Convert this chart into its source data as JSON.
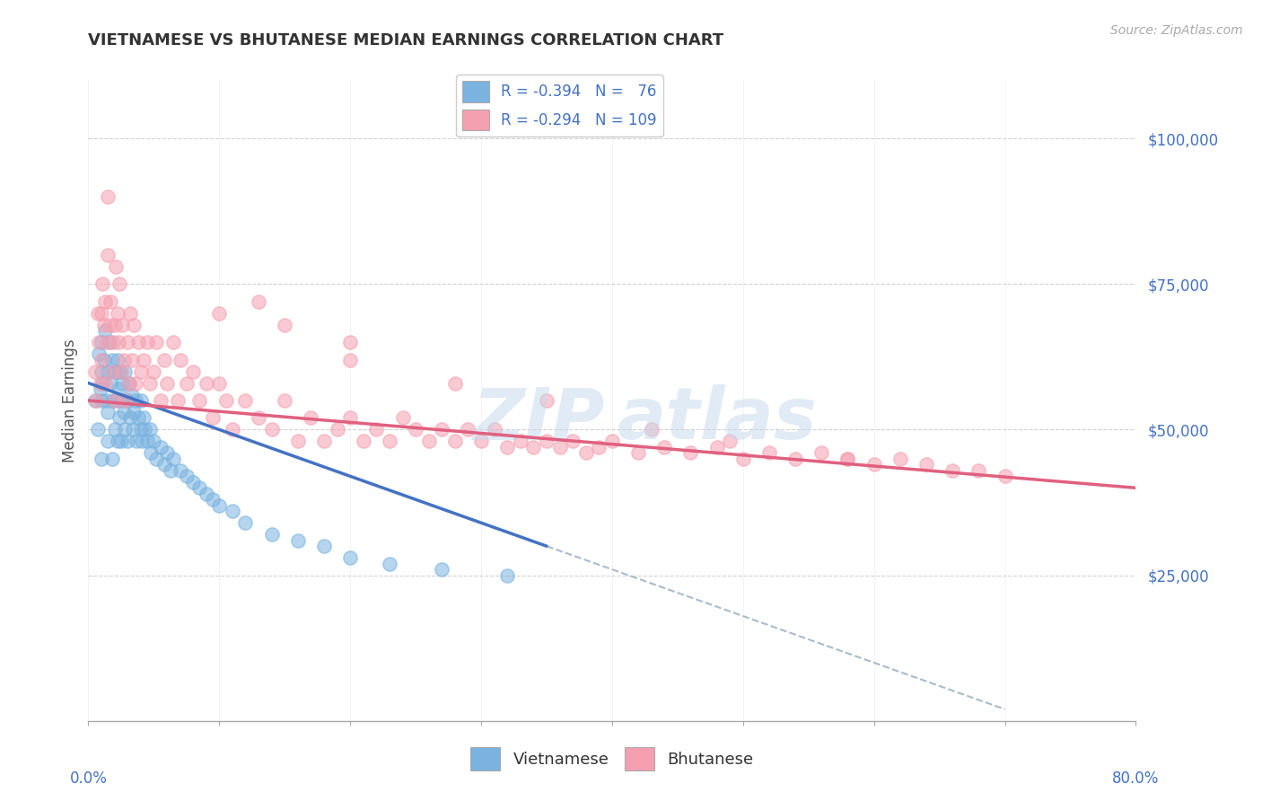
{
  "title": "VIETNAMESE VS BHUTANESE MEDIAN EARNINGS CORRELATION CHART",
  "source": "Source: ZipAtlas.com",
  "ylabel": "Median Earnings",
  "y_ticks": [
    25000,
    50000,
    75000,
    100000
  ],
  "y_tick_labels": [
    "$25,000",
    "$50,000",
    "$75,000",
    "$100,000"
  ],
  "xlim": [
    0.0,
    0.8
  ],
  "ylim": [
    0,
    110000
  ],
  "legend_r1": "R = -0.394   N =   76",
  "legend_r2": "R = -0.294   N = 109",
  "viet_color": "#7ab3e0",
  "bhut_color": "#f5a0b0",
  "viet_line_color": "#4472c4",
  "bhut_line_color": "#e06080",
  "dash_line_color": "#aabbcc",
  "background_color": "#ffffff",
  "viet_scatter_x": [
    0.005,
    0.007,
    0.008,
    0.009,
    0.01,
    0.01,
    0.01,
    0.01,
    0.011,
    0.012,
    0.013,
    0.014,
    0.015,
    0.015,
    0.015,
    0.016,
    0.017,
    0.018,
    0.018,
    0.019,
    0.02,
    0.02,
    0.021,
    0.022,
    0.022,
    0.023,
    0.024,
    0.024,
    0.025,
    0.025,
    0.026,
    0.027,
    0.028,
    0.028,
    0.029,
    0.03,
    0.03,
    0.031,
    0.032,
    0.033,
    0.034,
    0.035,
    0.036,
    0.037,
    0.038,
    0.04,
    0.04,
    0.041,
    0.042,
    0.043,
    0.045,
    0.047,
    0.048,
    0.05,
    0.052,
    0.055,
    0.058,
    0.06,
    0.063,
    0.065,
    0.07,
    0.075,
    0.08,
    0.085,
    0.09,
    0.095,
    0.1,
    0.11,
    0.12,
    0.14,
    0.16,
    0.18,
    0.2,
    0.23,
    0.27,
    0.32
  ],
  "viet_scatter_y": [
    55000,
    50000,
    63000,
    57000,
    65000,
    60000,
    55000,
    45000,
    58000,
    62000,
    67000,
    55000,
    60000,
    53000,
    48000,
    65000,
    58000,
    62000,
    45000,
    55000,
    60000,
    50000,
    55000,
    62000,
    48000,
    57000,
    52000,
    60000,
    55000,
    48000,
    58000,
    53000,
    60000,
    50000,
    55000,
    55000,
    48000,
    58000,
    52000,
    56000,
    50000,
    53000,
    55000,
    48000,
    52000,
    50000,
    55000,
    48000,
    52000,
    50000,
    48000,
    50000,
    46000,
    48000,
    45000,
    47000,
    44000,
    46000,
    43000,
    45000,
    43000,
    42000,
    41000,
    40000,
    39000,
    38000,
    37000,
    36000,
    34000,
    32000,
    31000,
    30000,
    28000,
    27000,
    26000,
    25000
  ],
  "bhut_scatter_x": [
    0.005,
    0.006,
    0.007,
    0.008,
    0.009,
    0.01,
    0.01,
    0.011,
    0.012,
    0.013,
    0.013,
    0.014,
    0.015,
    0.015,
    0.016,
    0.017,
    0.018,
    0.019,
    0.02,
    0.02,
    0.021,
    0.022,
    0.023,
    0.024,
    0.025,
    0.026,
    0.027,
    0.028,
    0.03,
    0.031,
    0.032,
    0.033,
    0.035,
    0.036,
    0.038,
    0.04,
    0.042,
    0.045,
    0.047,
    0.05,
    0.052,
    0.055,
    0.058,
    0.06,
    0.065,
    0.068,
    0.07,
    0.075,
    0.08,
    0.085,
    0.09,
    0.095,
    0.1,
    0.105,
    0.11,
    0.12,
    0.13,
    0.14,
    0.15,
    0.16,
    0.17,
    0.18,
    0.19,
    0.2,
    0.21,
    0.22,
    0.23,
    0.24,
    0.25,
    0.26,
    0.27,
    0.28,
    0.29,
    0.3,
    0.31,
    0.32,
    0.33,
    0.34,
    0.35,
    0.36,
    0.37,
    0.38,
    0.39,
    0.4,
    0.42,
    0.44,
    0.46,
    0.48,
    0.5,
    0.52,
    0.54,
    0.56,
    0.58,
    0.6,
    0.62,
    0.64,
    0.66,
    0.68,
    0.7,
    0.1,
    0.15,
    0.2,
    0.13,
    0.2,
    0.28,
    0.35,
    0.43,
    0.49,
    0.58
  ],
  "bhut_scatter_y": [
    60000,
    55000,
    70000,
    65000,
    58000,
    70000,
    62000,
    75000,
    68000,
    72000,
    58000,
    65000,
    80000,
    90000,
    68000,
    72000,
    60000,
    65000,
    68000,
    55000,
    78000,
    70000,
    65000,
    75000,
    60000,
    68000,
    62000,
    55000,
    65000,
    58000,
    70000,
    62000,
    68000,
    58000,
    65000,
    60000,
    62000,
    65000,
    58000,
    60000,
    65000,
    55000,
    62000,
    58000,
    65000,
    55000,
    62000,
    58000,
    60000,
    55000,
    58000,
    52000,
    58000,
    55000,
    50000,
    55000,
    52000,
    50000,
    55000,
    48000,
    52000,
    48000,
    50000,
    52000,
    48000,
    50000,
    48000,
    52000,
    50000,
    48000,
    50000,
    48000,
    50000,
    48000,
    50000,
    47000,
    48000,
    47000,
    48000,
    47000,
    48000,
    46000,
    47000,
    48000,
    46000,
    47000,
    46000,
    47000,
    45000,
    46000,
    45000,
    46000,
    45000,
    44000,
    45000,
    44000,
    43000,
    43000,
    42000,
    70000,
    68000,
    62000,
    72000,
    65000,
    58000,
    55000,
    50000,
    48000,
    45000
  ]
}
